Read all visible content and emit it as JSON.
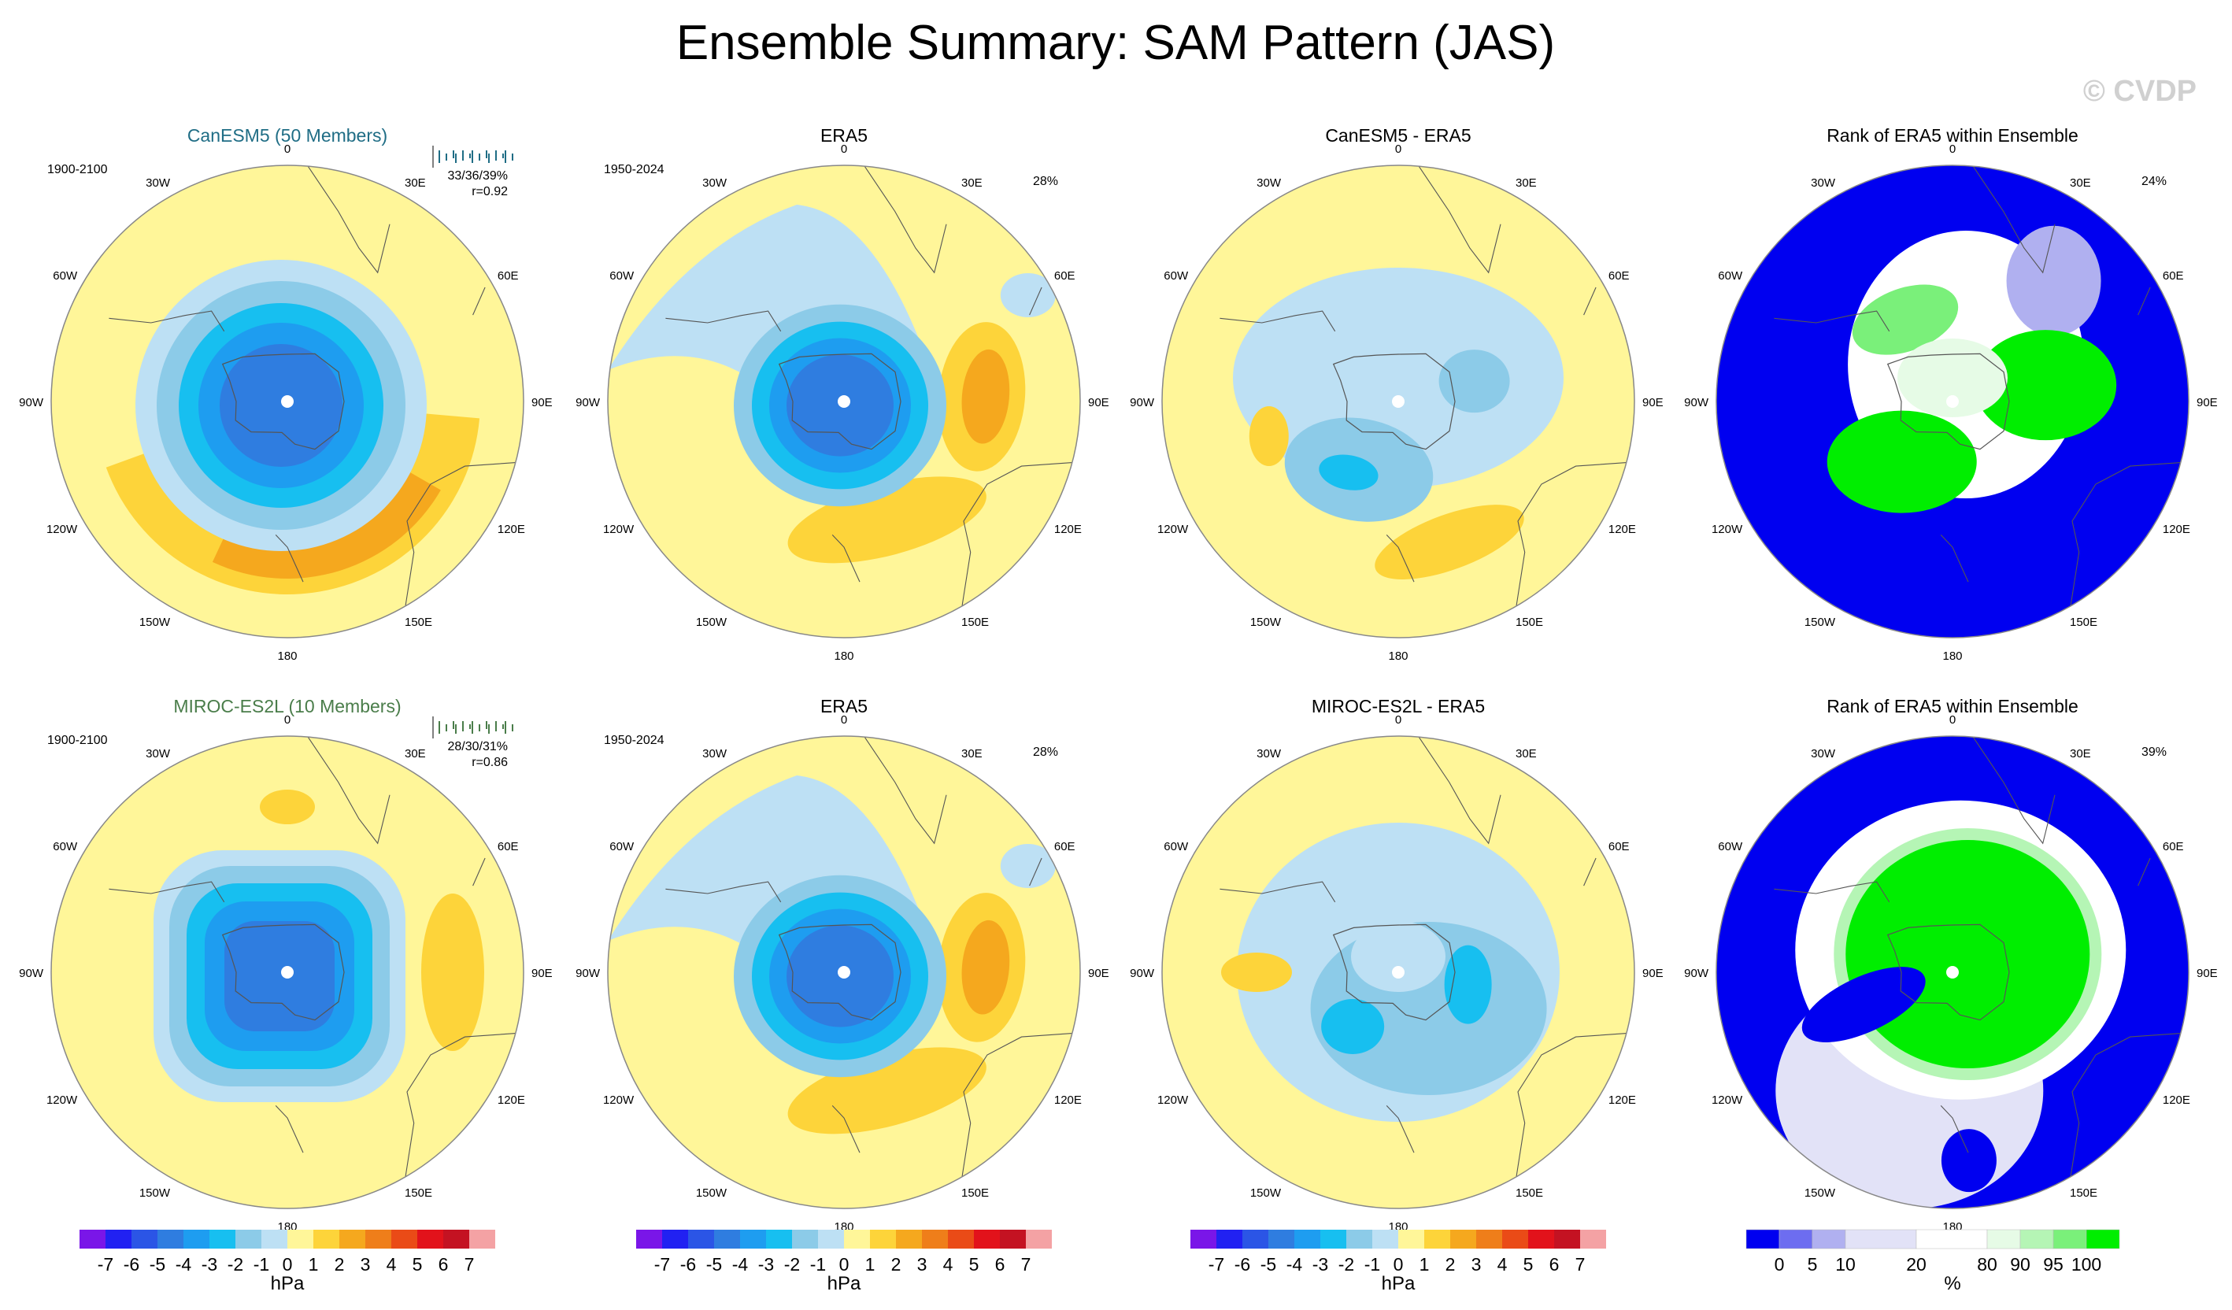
{
  "title": "Ensemble Summary: SAM Pattern (JAS)",
  "watermark": "© CVDP",
  "colors": {
    "ocean": "#fff699",
    "land_line": "#555555",
    "label_blue": "#1f6d85",
    "label_green": "#4a7d4a",
    "scale_hpa": [
      "#7a16e8",
      "#2121f2",
      "#2b55e6",
      "#2f7de0",
      "#1e9df0",
      "#17bff0",
      "#8ccbe8",
      "#bde0f4",
      "#fff699",
      "#fdd43a",
      "#f5a81e",
      "#ef7e1a",
      "#ea4b17",
      "#e2121b",
      "#c41222",
      "#f4a2a4"
    ],
    "scale_pct": [
      "#0000f0",
      "#6d6df0",
      "#b0b0f0",
      "#e2e2f7",
      "#ffffff",
      "#e6fbe6",
      "#b5f5b5",
      "#7af07a",
      "#00ee00"
    ]
  },
  "colorbars": [
    {
      "unit": "hPa",
      "labels": [
        "-7",
        "-6",
        "-5",
        "-4",
        "-3",
        "-2",
        "-1",
        "0",
        "1",
        "2",
        "3",
        "4",
        "5",
        "6",
        "7"
      ]
    },
    {
      "unit": "hPa",
      "labels": [
        "-7",
        "-6",
        "-5",
        "-4",
        "-3",
        "-2",
        "-1",
        "0",
        "1",
        "2",
        "3",
        "4",
        "5",
        "6",
        "7"
      ]
    },
    {
      "unit": "hPa",
      "labels": [
        "-7",
        "-6",
        "-5",
        "-4",
        "-3",
        "-2",
        "-1",
        "0",
        "1",
        "2",
        "3",
        "4",
        "5",
        "6",
        "7"
      ]
    },
    {
      "unit": "%",
      "labels": [
        "0",
        "5",
        "10",
        "20",
        "80",
        "90",
        "95",
        "100"
      ]
    }
  ],
  "lon_labels": [
    "0",
    "30E",
    "60E",
    "90E",
    "120E",
    "150E",
    "180",
    "150W",
    "120W",
    "90W",
    "60W",
    "30W"
  ],
  "chart_data": [
    {
      "type": "heatmap",
      "row": 0,
      "col": 0,
      "title": "CanESM5 (50 Members)",
      "title_color": "label",
      "period": "1900-2100",
      "stats": "33/36/39%",
      "corr": "r=0.92",
      "pattern": "model1",
      "scale": "hPa"
    },
    {
      "type": "heatmap",
      "row": 0,
      "col": 1,
      "title": "ERA5",
      "period": "1950-2024",
      "pct": "28%",
      "pattern": "obs1",
      "scale": "hPa"
    },
    {
      "type": "heatmap",
      "row": 0,
      "col": 2,
      "title": "CanESM5 - ERA5",
      "pattern": "diff1",
      "scale": "hPa"
    },
    {
      "type": "heatmap",
      "row": 0,
      "col": 3,
      "title": "Rank of ERA5 within Ensemble",
      "pct": "24%",
      "pattern": "rank1",
      "scale": "pct"
    },
    {
      "type": "heatmap",
      "row": 1,
      "col": 0,
      "title": "MIROC-ES2L (10 Members)",
      "title_color": "label2",
      "period": "1900-2100",
      "stats": "28/30/31%",
      "corr": "r=0.86",
      "pattern": "model2",
      "scale": "hPa"
    },
    {
      "type": "heatmap",
      "row": 1,
      "col": 1,
      "title": "ERA5",
      "period": "1950-2024",
      "pct": "28%",
      "pattern": "obs2",
      "scale": "hPa"
    },
    {
      "type": "heatmap",
      "row": 1,
      "col": 2,
      "title": "MIROC-ES2L - ERA5",
      "pattern": "diff2",
      "scale": "hPa"
    },
    {
      "type": "heatmap",
      "row": 1,
      "col": 3,
      "title": "Rank of ERA5 within Ensemble",
      "pct": "39%",
      "pattern": "rank2",
      "scale": "pct"
    }
  ]
}
